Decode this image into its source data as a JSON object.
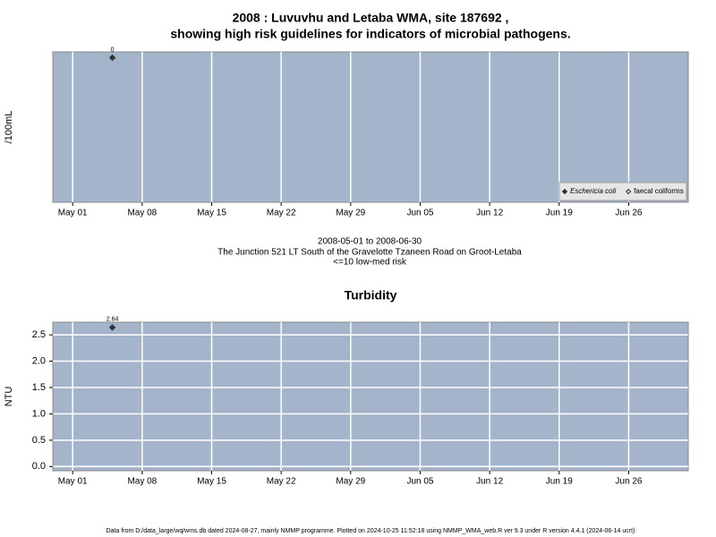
{
  "title": [
    "2008 : Luvuvhu and Letaba WMA, site 187692 ,",
    "showing high risk guidelines for indicators of microbial pathogens."
  ],
  "chart_data": [
    {
      "type": "scatter",
      "y_label": "/100mL",
      "x": [
        "2008-05-05"
      ],
      "series": [
        {
          "name": "Eschericia coli",
          "color": "#333333",
          "filled": true,
          "values": [
            0
          ]
        },
        {
          "name": "faecal coliforms",
          "color": "#333333",
          "filled": false,
          "values": [
            null
          ]
        }
      ],
      "xlim": [
        "2008-04-29",
        "2008-07-02"
      ],
      "xticks": [
        {
          "value": "2008-05-01",
          "label": "May 01"
        },
        {
          "value": "2008-05-08",
          "label": "May 08"
        },
        {
          "value": "2008-05-15",
          "label": "May 15"
        },
        {
          "value": "2008-05-22",
          "label": "May 22"
        },
        {
          "value": "2008-05-29",
          "label": "May 29"
        },
        {
          "value": "2008-06-05",
          "label": "Jun 05"
        },
        {
          "value": "2008-06-12",
          "label": "Jun 12"
        },
        {
          "value": "2008-06-19",
          "label": "Jun 19"
        },
        {
          "value": "2008-06-26",
          "label": "Jun 26"
        }
      ],
      "ylim": [
        -1,
        0.04
      ],
      "legend": "bottom-right",
      "grid": true,
      "background": "#a4b4cb"
    },
    {
      "type": "scatter",
      "title": "Turbidity",
      "y_label": "NTU",
      "x": [
        "2008-05-05"
      ],
      "series": [
        {
          "name": "Turbidity",
          "color": "#333333",
          "filled": true,
          "values": [
            2.64
          ]
        }
      ],
      "xlim": [
        "2008-04-29",
        "2008-07-02"
      ],
      "xticks": [
        {
          "value": "2008-05-01",
          "label": "May 01"
        },
        {
          "value": "2008-05-08",
          "label": "May 08"
        },
        {
          "value": "2008-05-15",
          "label": "May 15"
        },
        {
          "value": "2008-05-22",
          "label": "May 22"
        },
        {
          "value": "2008-05-29",
          "label": "May 29"
        },
        {
          "value": "2008-06-05",
          "label": "Jun 05"
        },
        {
          "value": "2008-06-12",
          "label": "Jun 12"
        },
        {
          "value": "2008-06-19",
          "label": "Jun 19"
        },
        {
          "value": "2008-06-26",
          "label": "Jun 26"
        }
      ],
      "ylim": [
        -0.08,
        2.74
      ],
      "yticks": [
        {
          "value": 0,
          "label": "0.0"
        },
        {
          "value": 0.5,
          "label": "0.5"
        },
        {
          "value": 1,
          "label": "1.0"
        },
        {
          "value": 1.5,
          "label": "1.5"
        },
        {
          "value": 2,
          "label": "2.0"
        },
        {
          "value": 2.5,
          "label": "2.5"
        }
      ],
      "grid": true,
      "background": "#a4b4cb"
    }
  ],
  "captions": [
    "2008-05-01 to 2008-06-30",
    "The Junction 521 LT South of the Gravelotte Tzaneen Road on Groot-Letaba",
    "<=10 low-med risk"
  ],
  "footer": "Data from D:/data_large/wq/wms.db dated 2024-08-27, mainly NMMP programme. Plotted on 2024-10-25 11:52:18 using NMMP_WMA_web.R ver 9.3 under R version 4.4.1 (2024-06-14 ucrt)"
}
